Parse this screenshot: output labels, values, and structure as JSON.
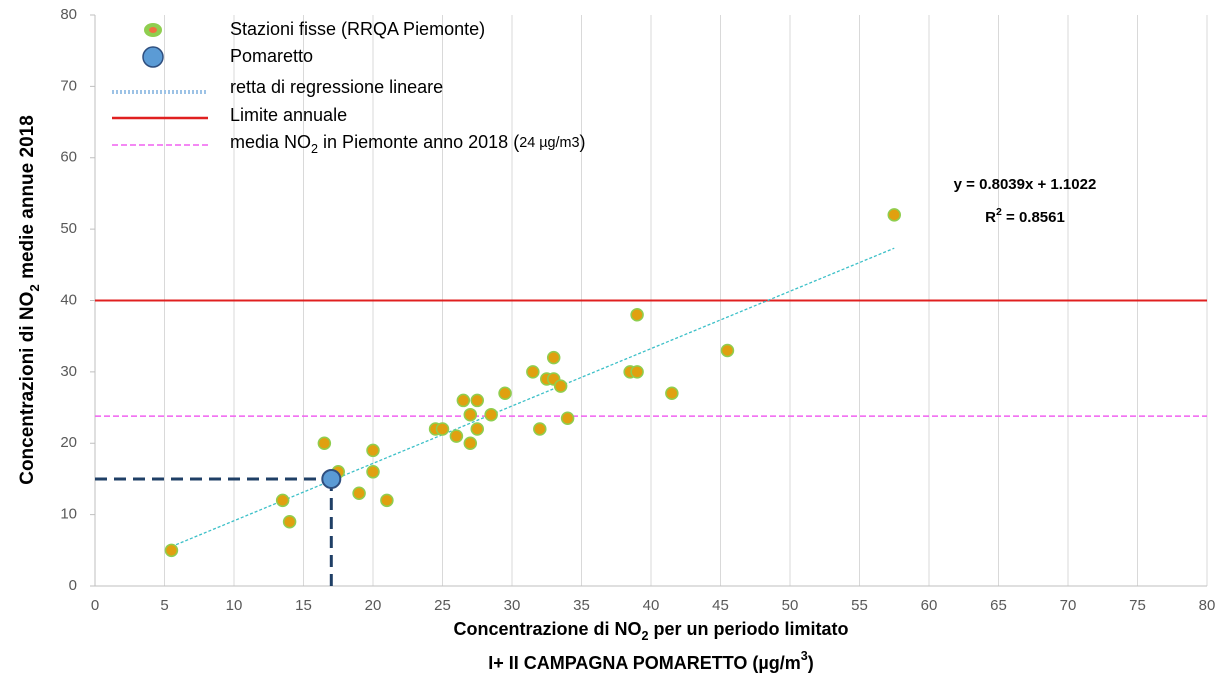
{
  "chart_data": {
    "type": "scatter",
    "y_title": [
      {
        "text": "Concentrazioni di NO"
      },
      {
        "text": "2",
        "script": "sub"
      },
      {
        "text": " medie annue 2018"
      }
    ],
    "x_title": [
      [
        {
          "text": "Concentrazione di NO"
        },
        {
          "text": "2",
          "script": "sub"
        },
        {
          "text": " per un periodo limitato"
        }
      ],
      [
        {
          "text": "I+ II CAMPAGNA POMARETTO (µg/m"
        },
        {
          "text": "3",
          "script": "sup"
        },
        {
          "text": ")"
        }
      ]
    ],
    "xlim": [
      0,
      80
    ],
    "ylim": [
      0,
      80
    ],
    "xticks": [
      0,
      5,
      10,
      15,
      20,
      25,
      30,
      35,
      40,
      45,
      50,
      55,
      60,
      65,
      70,
      75,
      80
    ],
    "yticks": [
      0,
      10,
      20,
      30,
      40,
      50,
      60,
      70,
      80
    ],
    "grid": "x",
    "legend": "top-left",
    "series": [
      {
        "name": "Stazioni fisse (RRQA Piemonte)",
        "color": "#e0a010",
        "edge": "#8fce4f",
        "x": [
          5.5,
          13.5,
          14,
          16.5,
          17.5,
          19,
          20,
          20,
          21,
          24.5,
          25,
          26,
          26.5,
          27,
          27,
          27.5,
          27.5,
          28.5,
          29.5,
          31.5,
          32,
          32.5,
          33,
          33,
          33.5,
          34,
          38.5,
          39,
          39,
          41.5,
          45.5,
          57.5
        ],
        "values": [
          5,
          12,
          9,
          20,
          16,
          13,
          19,
          16,
          12,
          22,
          22,
          21,
          26,
          24,
          20,
          26,
          22,
          24,
          27,
          30,
          22,
          29,
          32,
          29,
          28,
          23.5,
          30,
          30,
          38,
          27,
          33,
          52
        ]
      },
      {
        "name": "Pomaretto",
        "color": "#5b9bd5",
        "edge": "#2f4f7f",
        "x": [
          17
        ],
        "values": [
          15
        ],
        "guides": true
      }
    ],
    "trendline": {
      "name": "retta di regressione lineare",
      "color": "#3cc0c8",
      "slope": 0.8039,
      "intercept": 1.1022,
      "xrange": [
        5.5,
        57.5
      ],
      "equation": "y = 0.8039x + 1.1022",
      "r2": [
        {
          "text": "R"
        },
        {
          "text": "2",
          "script": "sup"
        },
        {
          "text": " = 0.8561"
        }
      ]
    },
    "hlines": [
      {
        "name": [
          {
            "text": "Limite annuale"
          }
        ],
        "value": 40,
        "color": "#e02020",
        "dash": false
      },
      {
        "name": [
          {
            "text": "media NO"
          },
          {
            "text": "2",
            "script": "sub"
          },
          {
            "text": " in Piemonte anno 2018 ("
          },
          {
            "text": "24 µg/m3",
            "script": "small"
          },
          {
            "text": ")"
          }
        ],
        "value": 23.8,
        "color": "#f060f0",
        "dash": true
      }
    ]
  }
}
